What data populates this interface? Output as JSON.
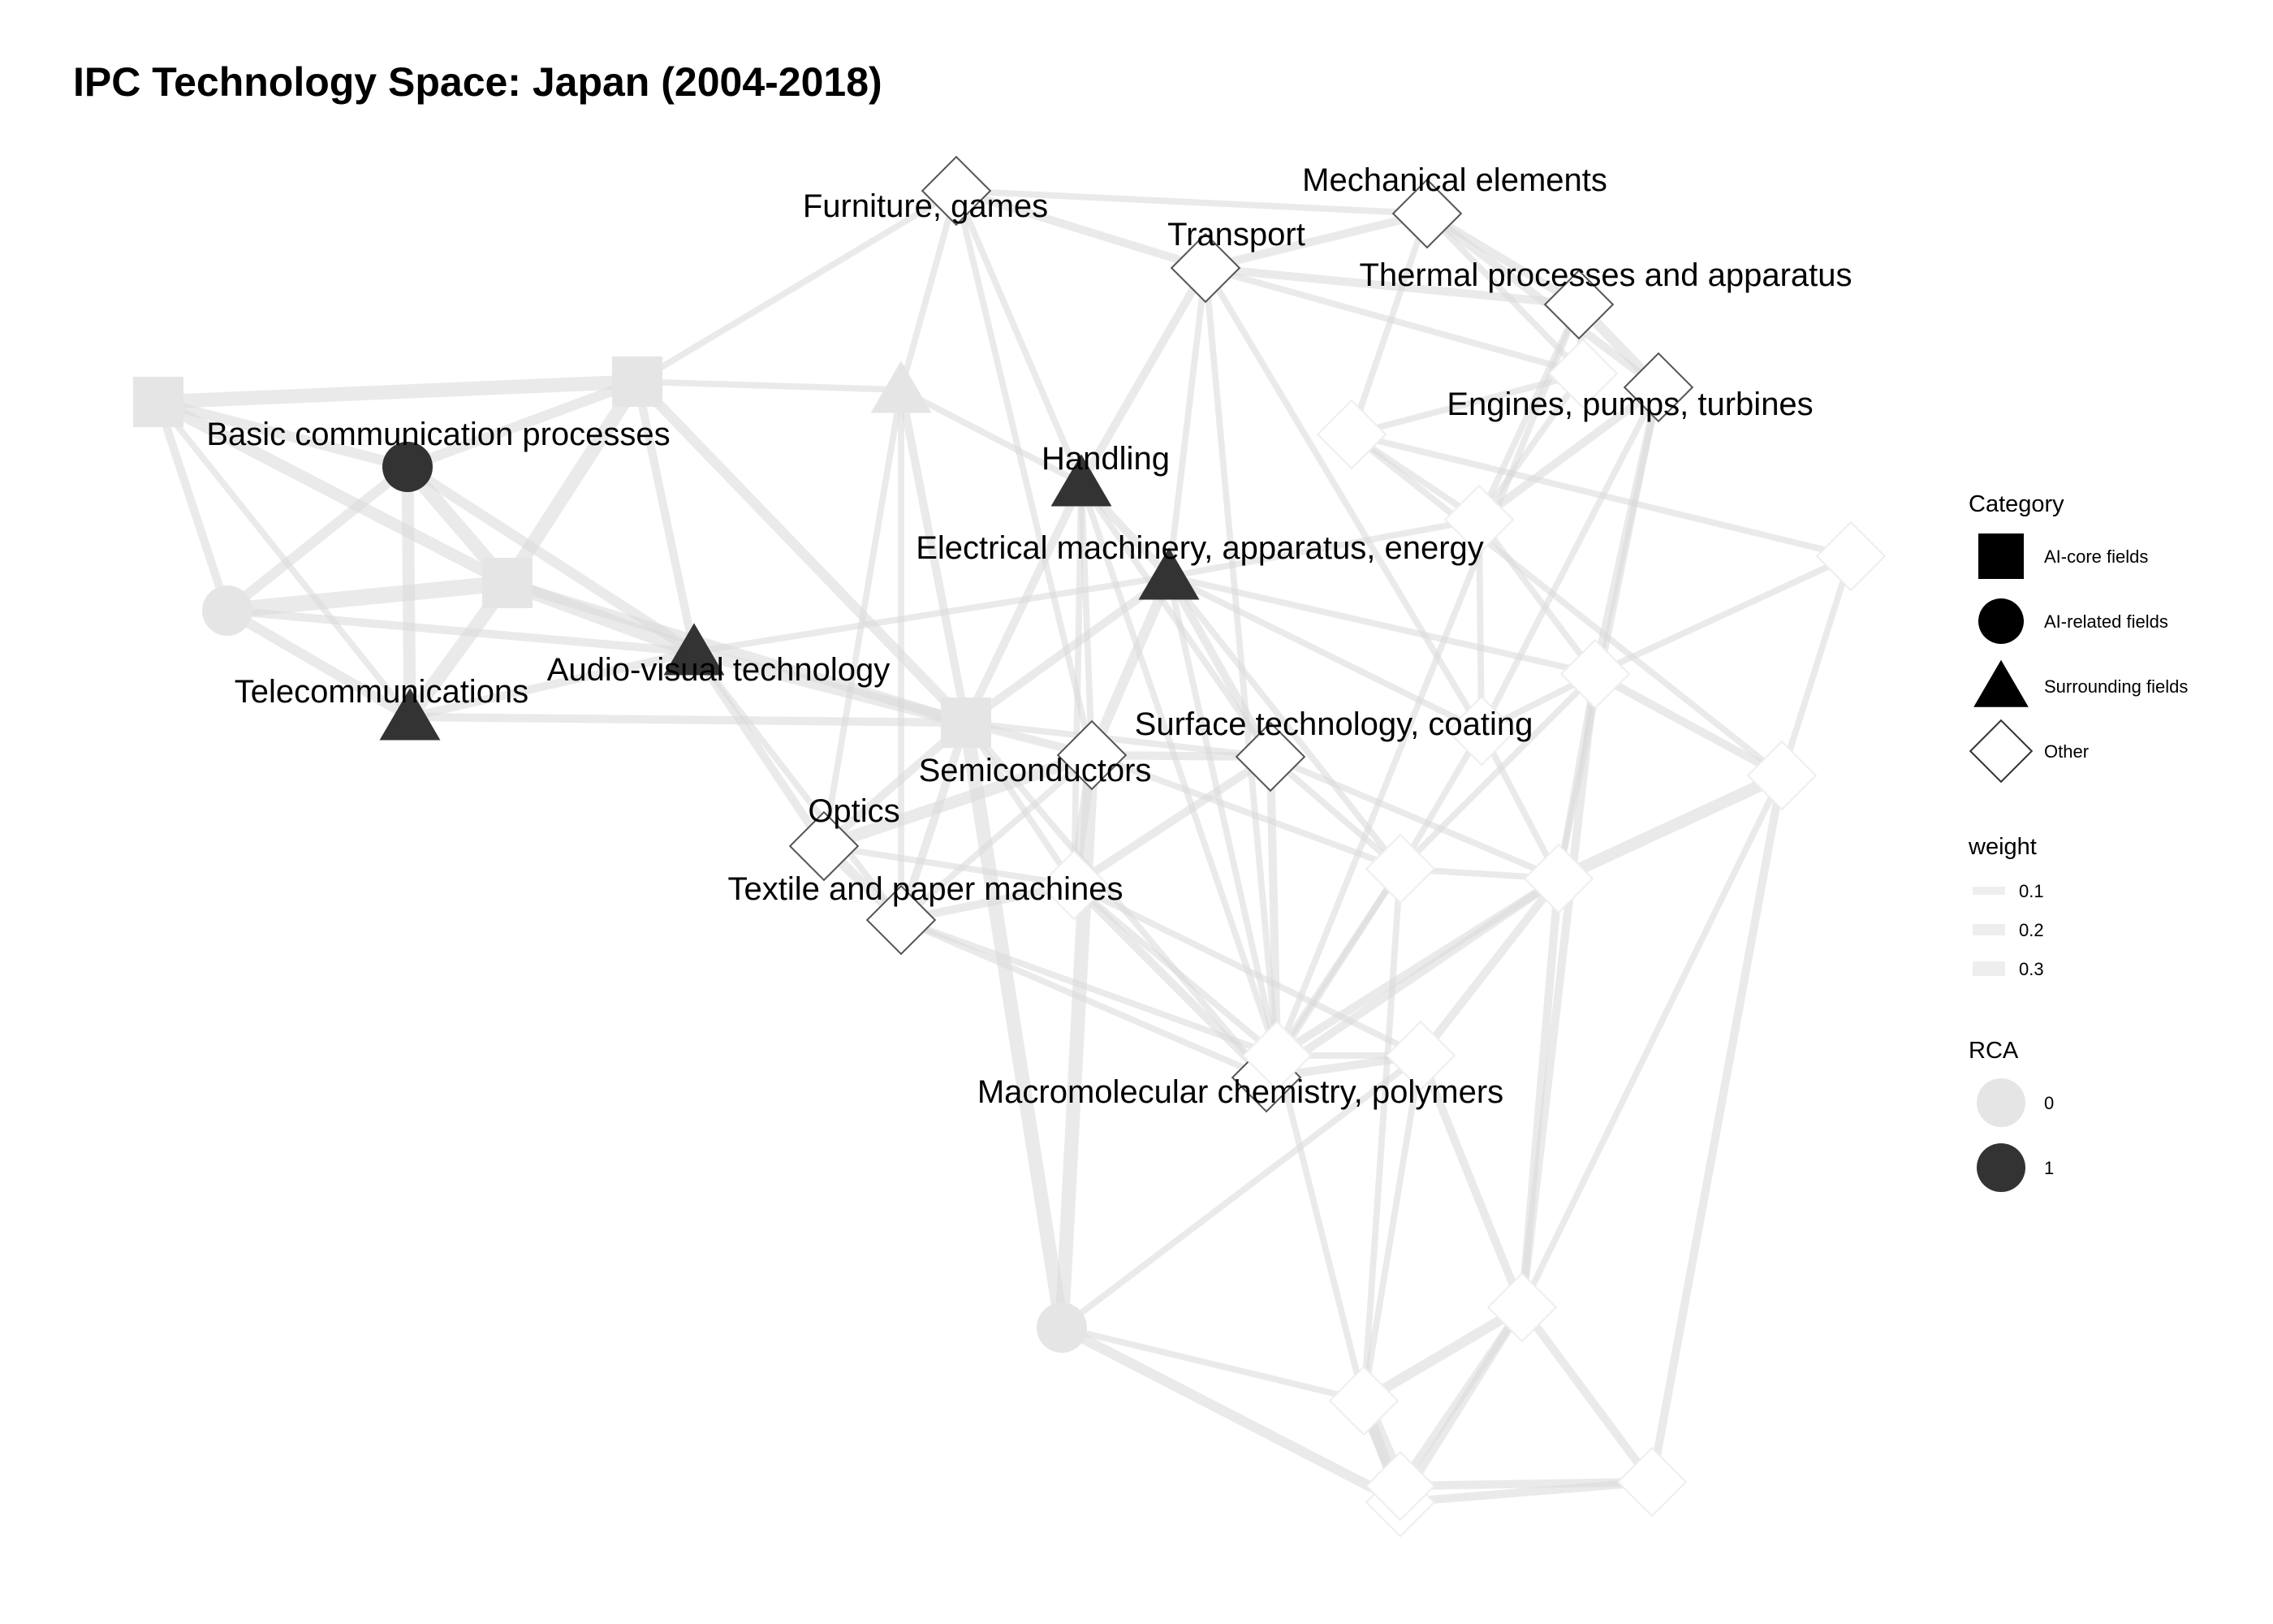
{
  "title": "IPC Technology Space: Japan (2004-2018)",
  "colors": {
    "rca_high": "#333333",
    "rca_low": "#e5e5e5",
    "edge": "#d9d9d9",
    "other_stroke": "#555555"
  },
  "nodes": [
    {
      "id": "n1",
      "label": "",
      "category": "AI-core fields",
      "rca": 0
    },
    {
      "id": "n2",
      "label": "",
      "category": "AI-core fields",
      "rca": 0
    },
    {
      "id": "n3",
      "label": "",
      "category": "AI-core fields",
      "rca": 0
    },
    {
      "id": "n4",
      "label": "",
      "category": "AI-core fields",
      "rca": 0
    },
    {
      "id": "n5",
      "label": "Basic communication processes",
      "category": "AI-related fields",
      "rca": 1
    },
    {
      "id": "n6",
      "label": "",
      "category": "AI-related fields",
      "rca": 0
    },
    {
      "id": "n7",
      "label": "",
      "category": "AI-related fields",
      "rca": 0
    },
    {
      "id": "n8",
      "label": "",
      "category": "Surrounding fields",
      "rca": 0
    },
    {
      "id": "n9",
      "label": "Handling",
      "category": "Surrounding fields",
      "rca": 1
    },
    {
      "id": "n10",
      "label": "Electrical machinery, apparatus, energy",
      "category": "Surrounding fields",
      "rca": 1
    },
    {
      "id": "n11",
      "label": "Audio-visual technology",
      "category": "Surrounding fields",
      "rca": 1
    },
    {
      "id": "n12",
      "label": "Telecommunications",
      "category": "Surrounding fields",
      "rca": 1
    },
    {
      "id": "n13",
      "label": "Furniture, games",
      "category": "Other",
      "rca": 1
    },
    {
      "id": "n14",
      "label": "Mechanical elements",
      "category": "Other",
      "rca": 1
    },
    {
      "id": "n15",
      "label": "Transport",
      "category": "Other",
      "rca": 1
    },
    {
      "id": "n16",
      "label": "Thermal processes and apparatus",
      "category": "Other",
      "rca": 1
    },
    {
      "id": "n17",
      "label": "Engines, pumps, turbines",
      "category": "Other",
      "rca": 1
    },
    {
      "id": "n18",
      "label": "Semiconductors",
      "category": "Other",
      "rca": 1
    },
    {
      "id": "n19",
      "label": "Surface technology, coating",
      "category": "Other",
      "rca": 1
    },
    {
      "id": "n20",
      "label": "Optics",
      "category": "Other",
      "rca": 1
    },
    {
      "id": "n21",
      "label": "Textile and paper machines",
      "category": "Other",
      "rca": 1
    },
    {
      "id": "n22",
      "label": "Macromolecular chemistry, polymers",
      "category": "Other",
      "rca": 1
    },
    {
      "id": "n23",
      "label": "",
      "category": "Other",
      "rca": 0
    },
    {
      "id": "n24",
      "label": "",
      "category": "Other",
      "rca": 0
    },
    {
      "id": "n25",
      "label": "",
      "category": "Other",
      "rca": 0
    },
    {
      "id": "n26",
      "label": "",
      "category": "Other",
      "rca": 0
    },
    {
      "id": "n27",
      "label": "",
      "category": "Other",
      "rca": 0
    },
    {
      "id": "n28",
      "label": "",
      "category": "Other",
      "rca": 0
    },
    {
      "id": "n29",
      "label": "",
      "category": "Other",
      "rca": 0
    },
    {
      "id": "n30",
      "label": "",
      "category": "Other",
      "rca": 0
    },
    {
      "id": "n31",
      "label": "",
      "category": "Other",
      "rca": 0
    },
    {
      "id": "n32",
      "label": "",
      "category": "Other",
      "rca": 0
    },
    {
      "id": "n33",
      "label": "",
      "category": "Other",
      "rca": 0
    },
    {
      "id": "n34",
      "label": "",
      "category": "Other",
      "rca": 0
    },
    {
      "id": "n35",
      "label": "",
      "category": "Other",
      "rca": 0
    },
    {
      "id": "n36",
      "label": "",
      "category": "Other",
      "rca": 0
    },
    {
      "id": "n37",
      "label": "",
      "category": "Other",
      "rca": 0
    },
    {
      "id": "n38",
      "label": "",
      "category": "Other",
      "rca": 0
    },
    {
      "id": "n39",
      "label": "",
      "category": "Other",
      "rca": 0
    }
  ],
  "edges": [
    {
      "from": "n1",
      "to": "n2",
      "w": 0.3
    },
    {
      "from": "n1",
      "to": "n3",
      "w": 0.25
    },
    {
      "from": "n1",
      "to": "n5",
      "w": 0.2
    },
    {
      "from": "n1",
      "to": "n6",
      "w": 0.15
    },
    {
      "from": "n1",
      "to": "n12",
      "w": 0.1
    },
    {
      "from": "n2",
      "to": "n3",
      "w": 0.3
    },
    {
      "from": "n2",
      "to": "n5",
      "w": 0.2
    },
    {
      "from": "n2",
      "to": "n11",
      "w": 0.15
    },
    {
      "from": "n2",
      "to": "n4",
      "w": 0.2
    },
    {
      "from": "n2",
      "to": "n8",
      "w": 0.1
    },
    {
      "from": "n2",
      "to": "n13",
      "w": 0.1
    },
    {
      "from": "n3",
      "to": "n5",
      "w": 0.3
    },
    {
      "from": "n3",
      "to": "n6",
      "w": 0.35
    },
    {
      "from": "n3",
      "to": "n11",
      "w": 0.3
    },
    {
      "from": "n3",
      "to": "n12",
      "w": 0.3
    },
    {
      "from": "n3",
      "to": "n4",
      "w": 0.2
    },
    {
      "from": "n4",
      "to": "n11",
      "w": 0.25
    },
    {
      "from": "n4",
      "to": "n7",
      "w": 0.3
    },
    {
      "from": "n4",
      "to": "n8",
      "w": 0.15
    },
    {
      "from": "n4",
      "to": "n9",
      "w": 0.15
    },
    {
      "from": "n4",
      "to": "n10",
      "w": 0.15
    },
    {
      "from": "n4",
      "to": "n18",
      "w": 0.15
    },
    {
      "from": "n4",
      "to": "n19",
      "w": 0.1
    },
    {
      "from": "n4",
      "to": "n20",
      "w": 0.15
    },
    {
      "from": "n4",
      "to": "n21",
      "w": 0.15
    },
    {
      "from": "n4",
      "to": "n31",
      "w": 0.1
    },
    {
      "from": "n4",
      "to": "n22",
      "w": 0.1
    },
    {
      "from": "n5",
      "to": "n6",
      "w": 0.2
    },
    {
      "from": "n5",
      "to": "n12",
      "w": 0.25
    },
    {
      "from": "n5",
      "to": "n11",
      "w": 0.2
    },
    {
      "from": "n6",
      "to": "n12",
      "w": 0.2
    },
    {
      "from": "n6",
      "to": "n11",
      "w": 0.15
    },
    {
      "from": "n12",
      "to": "n11",
      "w": 0.15
    },
    {
      "from": "n12",
      "to": "n4",
      "w": 0.15
    },
    {
      "from": "n11",
      "to": "n20",
      "w": 0.15
    },
    {
      "from": "n11",
      "to": "n10",
      "w": 0.1
    },
    {
      "from": "n11",
      "to": "n21",
      "w": 0.1
    },
    {
      "from": "n8",
      "to": "n9",
      "w": 0.1
    },
    {
      "from": "n8",
      "to": "n13",
      "w": 0.1
    },
    {
      "from": "n8",
      "to": "n21",
      "w": 0.1
    },
    {
      "from": "n13",
      "to": "n15",
      "w": 0.15
    },
    {
      "from": "n13",
      "to": "n14",
      "w": 0.1
    },
    {
      "from": "n13",
      "to": "n9",
      "w": 0.1
    },
    {
      "from": "n13",
      "to": "n18",
      "w": 0.1
    },
    {
      "from": "n14",
      "to": "n15",
      "w": 0.15
    },
    {
      "from": "n14",
      "to": "n16",
      "w": 0.15
    },
    {
      "from": "n14",
      "to": "n17",
      "w": 0.15
    },
    {
      "from": "n14",
      "to": "n25",
      "w": 0.1
    },
    {
      "from": "n15",
      "to": "n16",
      "w": 0.15
    },
    {
      "from": "n15",
      "to": "n9",
      "w": 0.15
    },
    {
      "from": "n15",
      "to": "n25",
      "w": 0.1
    },
    {
      "from": "n15",
      "to": "n10",
      "w": 0.1
    },
    {
      "from": "n15",
      "to": "n26",
      "w": 0.1
    },
    {
      "from": "n16",
      "to": "n17",
      "w": 0.2
    },
    {
      "from": "n16",
      "to": "n25",
      "w": 0.15
    },
    {
      "from": "n16",
      "to": "n24",
      "w": 0.1
    },
    {
      "from": "n17",
      "to": "n24",
      "w": 0.15
    },
    {
      "from": "n17",
      "to": "n26",
      "w": 0.1
    },
    {
      "from": "n17",
      "to": "n28",
      "w": 0.15
    },
    {
      "from": "n9",
      "to": "n10",
      "w": 0.15
    },
    {
      "from": "n9",
      "to": "n18",
      "w": 0.1
    },
    {
      "from": "n9",
      "to": "n19",
      "w": 0.1
    },
    {
      "from": "n10",
      "to": "n18",
      "w": 0.2
    },
    {
      "from": "n10",
      "to": "n19",
      "w": 0.15
    },
    {
      "from": "n10",
      "to": "n24",
      "w": 0.1
    },
    {
      "from": "n10",
      "to": "n26",
      "w": 0.1
    },
    {
      "from": "n10",
      "to": "n28",
      "w": 0.1
    },
    {
      "from": "n10",
      "to": "n29",
      "w": 0.1
    },
    {
      "from": "n18",
      "to": "n19",
      "w": 0.15
    },
    {
      "from": "n18",
      "to": "n20",
      "w": 0.25
    },
    {
      "from": "n18",
      "to": "n31",
      "w": 0.2
    },
    {
      "from": "n18",
      "to": "n21",
      "w": 0.1
    },
    {
      "from": "n18",
      "to": "n7",
      "w": 0.3
    },
    {
      "from": "n18",
      "to": "n29",
      "w": 0.1
    },
    {
      "from": "n19",
      "to": "n31",
      "w": 0.15
    },
    {
      "from": "n19",
      "to": "n32",
      "w": 0.15
    },
    {
      "from": "n19",
      "to": "n29",
      "w": 0.1
    },
    {
      "from": "n19",
      "to": "n33",
      "w": 0.1
    },
    {
      "from": "n20",
      "to": "n21",
      "w": 0.2
    },
    {
      "from": "n20",
      "to": "n31",
      "w": 0.1
    },
    {
      "from": "n21",
      "to": "n31",
      "w": 0.15
    },
    {
      "from": "n21",
      "to": "n22",
      "w": 0.1
    },
    {
      "from": "n21",
      "to": "n32",
      "w": 0.1
    },
    {
      "from": "n22",
      "to": "n31",
      "w": 0.15
    },
    {
      "from": "n22",
      "to": "n32",
      "w": 0.2
    },
    {
      "from": "n22",
      "to": "n34",
      "w": 0.15
    },
    {
      "from": "n22",
      "to": "n33",
      "w": 0.15
    },
    {
      "from": "n22",
      "to": "n29",
      "w": 0.1
    },
    {
      "from": "n23",
      "to": "n24",
      "w": 0.1
    },
    {
      "from": "n23",
      "to": "n27",
      "w": 0.1
    },
    {
      "from": "n24",
      "to": "n28",
      "w": 0.1
    },
    {
      "from": "n24",
      "to": "n25",
      "w": 0.1
    },
    {
      "from": "n24",
      "to": "n26",
      "w": 0.1
    },
    {
      "from": "n26",
      "to": "n28",
      "w": 0.1
    },
    {
      "from": "n26",
      "to": "n29",
      "w": 0.1
    },
    {
      "from": "n27",
      "to": "n28",
      "w": 0.1
    },
    {
      "from": "n27",
      "to": "n30",
      "w": 0.1
    },
    {
      "from": "n28",
      "to": "n30",
      "w": 0.15
    },
    {
      "from": "n28",
      "to": "n33",
      "w": 0.1
    },
    {
      "from": "n28",
      "to": "n29",
      "w": 0.1
    },
    {
      "from": "n29",
      "to": "n33",
      "w": 0.1
    },
    {
      "from": "n29",
      "to": "n32",
      "w": 0.1
    },
    {
      "from": "n30",
      "to": "n33",
      "w": 0.25
    },
    {
      "from": "n30",
      "to": "n39",
      "w": 0.15
    },
    {
      "from": "n30",
      "to": "n35",
      "w": 0.1
    },
    {
      "from": "n33",
      "to": "n32",
      "w": 0.15
    },
    {
      "from": "n33",
      "to": "n34",
      "w": 0.15
    },
    {
      "from": "n33",
      "to": "n35",
      "w": 0.15
    },
    {
      "from": "n32",
      "to": "n34",
      "w": 0.1
    },
    {
      "from": "n34",
      "to": "n35",
      "w": 0.15
    },
    {
      "from": "n34",
      "to": "n36",
      "w": 0.1
    },
    {
      "from": "n35",
      "to": "n36",
      "w": 0.2
    },
    {
      "from": "n35",
      "to": "n37",
      "w": 0.15
    },
    {
      "from": "n35",
      "to": "n38",
      "w": 0.15
    },
    {
      "from": "n35",
      "to": "n39",
      "w": 0.15
    },
    {
      "from": "n36",
      "to": "n37",
      "w": 0.2
    },
    {
      "from": "n36",
      "to": "n38",
      "w": 0.35
    },
    {
      "from": "n37",
      "to": "n38",
      "w": 0.15
    },
    {
      "from": "n37",
      "to": "n39",
      "w": 0.15
    },
    {
      "from": "n38",
      "to": "n39",
      "w": 0.15
    },
    {
      "from": "n7",
      "to": "n37",
      "w": 0.2
    },
    {
      "from": "n7",
      "to": "n36",
      "w": 0.1
    },
    {
      "from": "n7",
      "to": "n34",
      "w": 0.1
    },
    {
      "from": "n8",
      "to": "n20",
      "w": 0.1
    },
    {
      "from": "n31",
      "to": "n32",
      "w": 0.1
    },
    {
      "from": "n31",
      "to": "n34",
      "w": 0.1
    },
    {
      "from": "n25",
      "to": "n23",
      "w": 0.1
    },
    {
      "from": "n23",
      "to": "n30",
      "w": 0.1
    },
    {
      "from": "n14",
      "to": "n23",
      "w": 0.1
    },
    {
      "from": "n15",
      "to": "n32",
      "w": 0.1
    },
    {
      "from": "n16",
      "to": "n32",
      "w": 0.1
    },
    {
      "from": "n17",
      "to": "n33",
      "w": 0.1
    },
    {
      "from": "n10",
      "to": "n32",
      "w": 0.1
    },
    {
      "from": "n9",
      "to": "n31",
      "w": 0.1
    },
    {
      "from": "n9",
      "to": "n32",
      "w": 0.1
    },
    {
      "from": "n26",
      "to": "n33",
      "w": 0.1
    },
    {
      "from": "n28",
      "to": "n35",
      "w": 0.15
    },
    {
      "from": "n29",
      "to": "n36",
      "w": 0.1
    },
    {
      "from": "n32",
      "to": "n36",
      "w": 0.1
    }
  ],
  "legend": {
    "category": {
      "title": "Category",
      "items": [
        {
          "label": "AI-core fields",
          "shape": "square"
        },
        {
          "label": "AI-related fields",
          "shape": "circle"
        },
        {
          "label": "Surrounding fields",
          "shape": "triangle"
        },
        {
          "label": "Other",
          "shape": "diamond"
        }
      ]
    },
    "weight": {
      "title": "weight",
      "items": [
        {
          "label": "0.1",
          "value": 0.1
        },
        {
          "label": "0.2",
          "value": 0.2
        },
        {
          "label": "0.3",
          "value": 0.3
        }
      ]
    },
    "rca": {
      "title": "RCA",
      "items": [
        {
          "label": "0",
          "value": 0
        },
        {
          "label": "1",
          "value": 1
        }
      ]
    }
  }
}
